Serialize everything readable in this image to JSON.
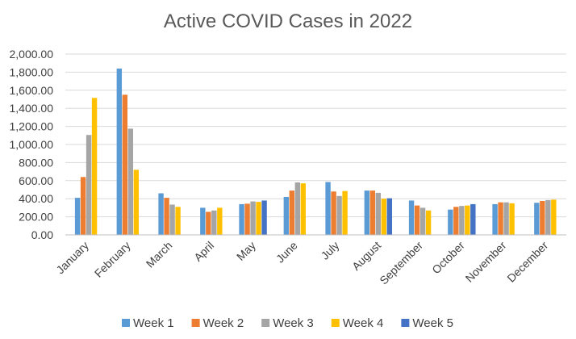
{
  "chart_data": {
    "type": "bar",
    "title": "Active COVID Cases in 2022",
    "xlabel": "",
    "ylabel": "",
    "ylim": [
      0,
      2000
    ],
    "y_ticks": [
      0,
      200,
      400,
      600,
      800,
      1000,
      1200,
      1400,
      1600,
      1800,
      2000
    ],
    "y_tick_labels": [
      "0.00",
      "200.00",
      "400.00",
      "600.00",
      "800.00",
      "1,000.00",
      "1,200.00",
      "1,400.00",
      "1,600.00",
      "1,800.00",
      "2,000.00"
    ],
    "grid": true,
    "legend_position": "bottom",
    "categories": [
      "January",
      "February",
      "March",
      "April",
      "May",
      "June",
      "July",
      "August",
      "September",
      "October",
      "November",
      "December"
    ],
    "series": [
      {
        "name": "Week 1",
        "color": "#5B9BD5",
        "values": [
          410,
          1840,
          460,
          300,
          340,
          420,
          585,
          490,
          380,
          280,
          340,
          355
        ]
      },
      {
        "name": "Week 2",
        "color": "#ED7D31",
        "values": [
          640,
          1550,
          410,
          255,
          345,
          490,
          480,
          490,
          325,
          310,
          360,
          375
        ]
      },
      {
        "name": "Week 3",
        "color": "#A5A5A5",
        "values": [
          1105,
          1175,
          335,
          270,
          370,
          580,
          430,
          465,
          300,
          320,
          360,
          385
        ]
      },
      {
        "name": "Week 4",
        "color": "#FFC000",
        "values": [
          1515,
          720,
          310,
          300,
          365,
          570,
          485,
          400,
          270,
          325,
          350,
          390
        ]
      },
      {
        "name": "Week 5",
        "color": "#4472C4",
        "values": [
          null,
          null,
          null,
          null,
          380,
          null,
          null,
          405,
          null,
          340,
          null,
          null
        ]
      }
    ]
  }
}
